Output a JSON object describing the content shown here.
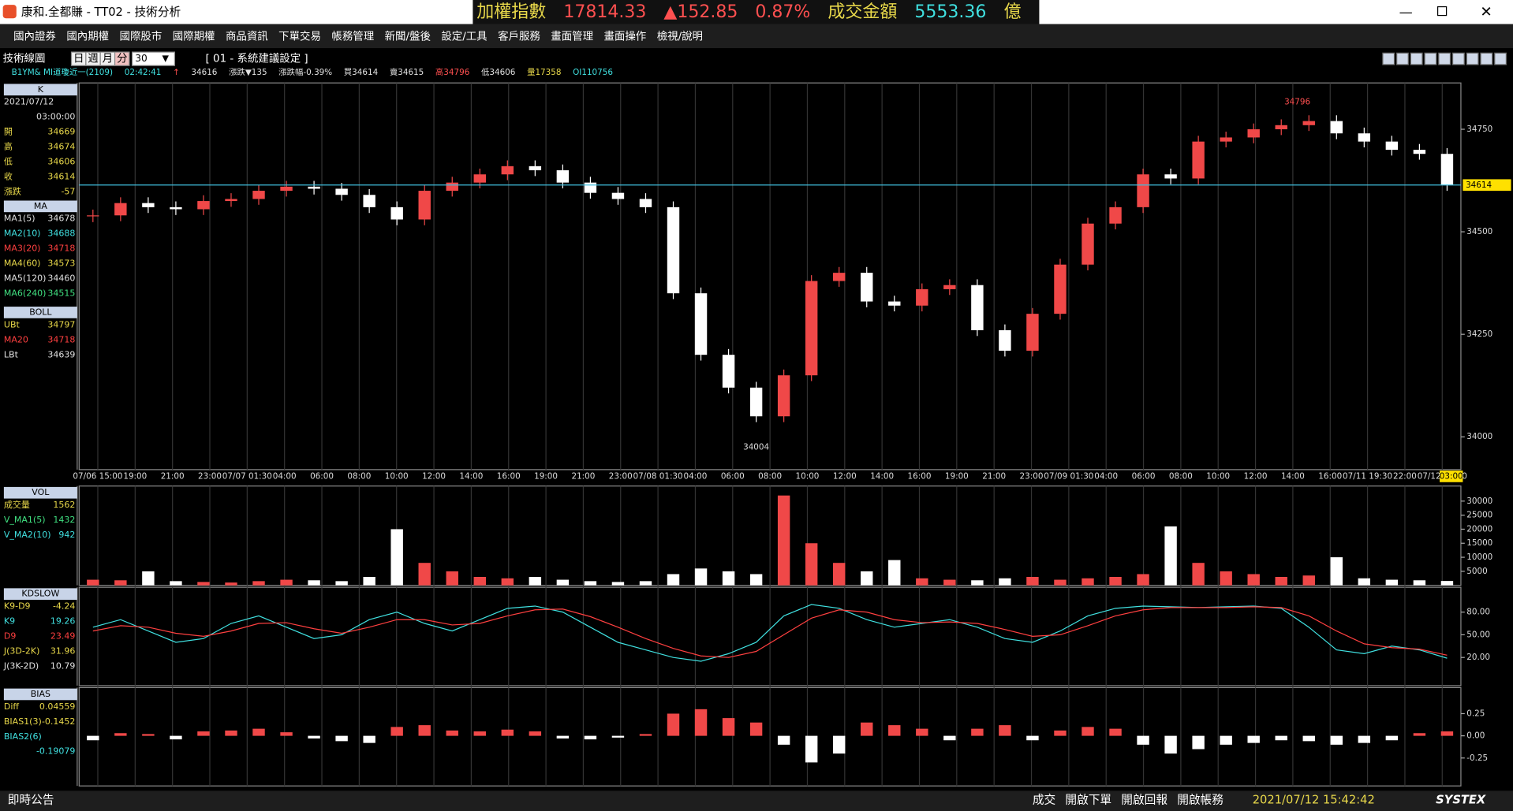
{
  "window": {
    "title": "康和.全都賺 - TT02 - 技術分析",
    "ticker": [
      {
        "text": "加權指數",
        "color": "#e8d84a"
      },
      {
        "text": "17814.33",
        "color": "#ff5050"
      },
      {
        "text": "▲152.85",
        "color": "#ff5050"
      },
      {
        "text": "0.87%",
        "color": "#ff5050"
      },
      {
        "text": "成交金額",
        "color": "#e8d84a"
      },
      {
        "text": "5553.36",
        "color": "#40e0e0"
      },
      {
        "text": "億",
        "color": "#e8d84a"
      }
    ]
  },
  "menu": [
    "國內證券",
    "國內期權",
    "國際股市",
    "國際期權",
    "商品資訊",
    "下單交易",
    "帳務管理",
    "新聞/盤後",
    "設定/工具",
    "客戶服務",
    "畫面管理",
    "畫面操作",
    "檢視/說明"
  ],
  "toolbar": {
    "label": "技術線圖",
    "periods": [
      "日",
      "週",
      "月",
      "分"
    ],
    "interval": "30",
    "setting": "[ 01 - 系統建議設定 ]"
  },
  "quote": [
    "B1YM&  MI道瓊近一(2109)",
    "02:42:41",
    "↑",
    "34616",
    "漲跌▼135",
    "漲跌幅-0.39%",
    "買34614",
    "賣34615",
    "高34796",
    "低34606",
    "量17358",
    "OI110756"
  ],
  "panels": [
    {
      "header": "K",
      "rows": [
        {
          "label": "2021/07/12",
          "value": "",
          "color": "#ddd"
        },
        {
          "label": "",
          "value": "03:00:00",
          "color": "#ddd"
        },
        {
          "label": "開",
          "value": "34669",
          "color": "#e8d84a"
        },
        {
          "label": "高",
          "value": "34674",
          "color": "#e8d84a"
        },
        {
          "label": "低",
          "value": "34606",
          "color": "#e8d84a"
        },
        {
          "label": "收",
          "value": "34614",
          "color": "#e8d84a"
        },
        {
          "label": "漲跌",
          "value": "-57",
          "color": "#e8d84a"
        }
      ]
    },
    {
      "header": "MA",
      "rows": [
        {
          "label": "MA1(5)",
          "value": "34678",
          "color": "#e0e0e0"
        },
        {
          "label": "MA2(10)",
          "value": "34688",
          "color": "#40e0e0"
        },
        {
          "label": "MA3(20)",
          "value": "34718",
          "color": "#ff4040"
        },
        {
          "label": "MA4(60)",
          "value": "34573",
          "color": "#e8d84a"
        },
        {
          "label": "MA5(120)",
          "value": "34460",
          "color": "#e0e0e0"
        },
        {
          "label": "MA6(240)",
          "value": "34515",
          "color": "#40e080"
        }
      ]
    },
    {
      "header": "BOLL",
      "rows": [
        {
          "label": "UBt",
          "value": "34797",
          "color": "#e8d84a"
        },
        {
          "label": "MA20",
          "value": "34718",
          "color": "#ff4040"
        },
        {
          "label": "LBt",
          "value": "34639",
          "color": "#e0e0e0"
        }
      ]
    },
    {
      "header": "VOL",
      "rows": [
        {
          "label": "成交量",
          "value": "1562",
          "color": "#e8d84a"
        },
        {
          "label": "V_MA1(5)",
          "value": "1432",
          "color": "#40e080"
        },
        {
          "label": "V_MA2(10)",
          "value": "942",
          "color": "#40e0e0"
        }
      ]
    },
    {
      "header": "KDSLOW",
      "rows": [
        {
          "label": "K9-D9",
          "value": "-4.24",
          "color": "#e8d84a"
        },
        {
          "label": "K9",
          "value": "19.26",
          "color": "#40e0e0"
        },
        {
          "label": "D9",
          "value": "23.49",
          "color": "#ff4040"
        },
        {
          "label": "J(3D-2K)",
          "value": "31.96",
          "color": "#e8d84a"
        },
        {
          "label": "J(3K-2D)",
          "value": "10.79",
          "color": "#e0e0e0"
        }
      ]
    },
    {
      "header": "BIAS",
      "rows": [
        {
          "label": "Diff",
          "value": "0.04559",
          "color": "#e8d84a"
        },
        {
          "label": "BIAS1(3)",
          "value": "-0.1452",
          "color": "#e8d84a"
        },
        {
          "label": "BIAS2(6)",
          "value": "",
          "color": "#40e0e0"
        },
        {
          "label": "",
          "value": "-0.19079",
          "color": "#40e0e0"
        }
      ]
    }
  ],
  "x_labels": [
    "07/06 15:00",
    "19:00",
    "21:00",
    "23:00",
    "07/07 01:30",
    "04:00",
    "06:00",
    "08:00",
    "10:00",
    "12:00",
    "14:00",
    "16:00",
    "19:00",
    "21:00",
    "23:00",
    "07/08 01:30",
    "04:00",
    "06:00",
    "08:00",
    "10:00",
    "12:00",
    "14:00",
    "16:00",
    "19:00",
    "21:00",
    "23:00",
    "07/09 01:30",
    "04:00",
    "06:00",
    "08:00",
    "10:00",
    "12:00",
    "14:00",
    "16:00",
    "07/11 19:30",
    "22:00",
    "07/12 00:30",
    "03:00"
  ],
  "price": {
    "ylim": [
      33920,
      34863
    ],
    "yticks": [
      34000,
      34250,
      34500,
      34750
    ],
    "up_color": "#f04848",
    "down_color": "#ffffff",
    "values": [
      34540,
      34570,
      34560,
      34555,
      34575,
      34580,
      34600,
      34610,
      34605,
      34590,
      34560,
      34530,
      34600,
      34620,
      34640,
      34660,
      34650,
      34620,
      34595,
      34580,
      34560,
      34350,
      34200,
      34120,
      34050,
      34150,
      34380,
      34400,
      34330,
      34320,
      34360,
      34370,
      34260,
      34210,
      34300,
      34420,
      34520,
      34560,
      34640,
      34630,
      34720,
      34730,
      34750,
      34760,
      34770,
      34740,
      34720,
      34700,
      34690,
      34614
    ],
    "high_label": "34796",
    "low_label": "34004"
  },
  "volume": {
    "ylim": [
      0,
      34000
    ],
    "yticks": [
      5000,
      10000,
      15000,
      20000,
      25000,
      30000
    ],
    "values": [
      2000,
      1800,
      5000,
      1500,
      1200,
      1000,
      1500,
      2000,
      1800,
      1500,
      3000,
      20000,
      8000,
      5000,
      3000,
      2500,
      3000,
      2000,
      1500,
      1200,
      1500,
      4000,
      6000,
      5000,
      4000,
      32000,
      15000,
      8000,
      5000,
      9000,
      2500,
      2000,
      1800,
      2500,
      3000,
      2000,
      2500,
      3000,
      4000,
      21000,
      8000,
      5000,
      4000,
      3000,
      3500,
      10000,
      2500,
      2000,
      1800,
      1562
    ]
  },
  "kd": {
    "ylim": [
      -16,
      109
    ],
    "yticks": [
      {
        "value": 20,
        "label": "20.00"
      },
      {
        "value": 50,
        "label": "50.00"
      },
      {
        "value": 80,
        "label": "80.00"
      }
    ],
    "series": [
      {
        "name": "K9",
        "color": "#40e0e0",
        "values": [
          60,
          70,
          55,
          40,
          45,
          65,
          75,
          60,
          45,
          50,
          70,
          80,
          65,
          55,
          70,
          85,
          88,
          80,
          60,
          40,
          30,
          20,
          15,
          25,
          40,
          75,
          90,
          85,
          70,
          60,
          65,
          70,
          60,
          45,
          40,
          55,
          75,
          85,
          88,
          87,
          86,
          87,
          88,
          85,
          60,
          30,
          25,
          35,
          30,
          19
        ]
      },
      {
        "name": "D9",
        "color": "#ff4040",
        "values": [
          55,
          62,
          60,
          52,
          48,
          55,
          65,
          66,
          58,
          52,
          60,
          70,
          70,
          63,
          65,
          75,
          83,
          84,
          74,
          60,
          45,
          32,
          22,
          20,
          28,
          50,
          72,
          83,
          80,
          70,
          66,
          67,
          65,
          57,
          48,
          50,
          62,
          75,
          83,
          86,
          86,
          86,
          87,
          86,
          75,
          55,
          38,
          33,
          31,
          23
        ]
      }
    ]
  },
  "bias": {
    "ylim": [
      -0.543,
      0.533
    ],
    "yticks": [
      {
        "value": -0.25,
        "label": "-0.25"
      },
      {
        "value": 0,
        "label": "0.00"
      },
      {
        "value": 0.25,
        "label": "0.25"
      }
    ],
    "values": [
      -0.05,
      0.03,
      0.02,
      -0.04,
      0.05,
      0.06,
      0.08,
      0.04,
      -0.03,
      -0.06,
      -0.08,
      0.1,
      0.12,
      0.06,
      0.05,
      0.07,
      0.05,
      -0.03,
      -0.04,
      -0.02,
      0.02,
      0.25,
      0.3,
      0.2,
      0.15,
      -0.1,
      -0.3,
      -0.2,
      0.15,
      0.12,
      0.08,
      -0.05,
      0.08,
      0.12,
      -0.05,
      0.06,
      0.1,
      0.08,
      -0.1,
      -0.2,
      -0.15,
      -0.1,
      -0.08,
      -0.05,
      -0.06,
      -0.1,
      -0.08,
      -0.05,
      0.03,
      0.05
    ]
  },
  "status": {
    "left": "即時公告",
    "buttons": [
      "成交",
      "開啟下單",
      "開啟回報",
      "開啟帳務"
    ],
    "time": "2021/07/12 15:42:42",
    "brand": "SYSTEX"
  }
}
